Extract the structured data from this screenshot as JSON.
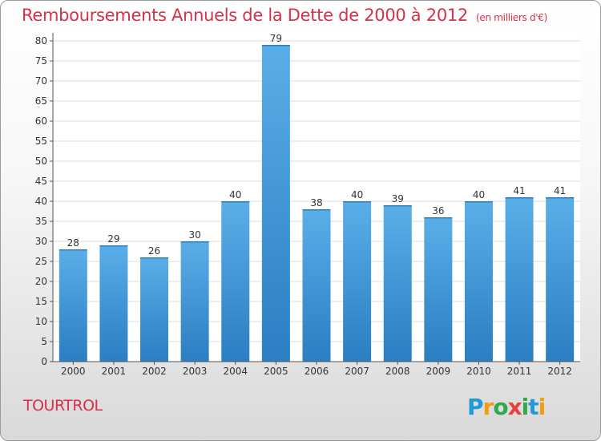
{
  "title": "Remboursements Annuels de la Dette de 2000 à 2012",
  "subtitle": "(en milliers d'€)",
  "location_label": "TOURTROL",
  "logo_text": "Proxiti",
  "colors": {
    "accent": "#d3324a",
    "bar_top": "#5aaee8",
    "bar_bottom": "#2a7ec2"
  },
  "chart_data": {
    "type": "bar",
    "categories": [
      "2000",
      "2001",
      "2002",
      "2003",
      "2004",
      "2005",
      "2006",
      "2007",
      "2008",
      "2009",
      "2010",
      "2011",
      "2012"
    ],
    "values": [
      28,
      29,
      26,
      30,
      40,
      79,
      38,
      40,
      39,
      36,
      40,
      41,
      41
    ],
    "title": "Remboursements Annuels de la Dette de 2000 à 2012",
    "ylim": [
      0,
      80
    ],
    "yticks": [
      0,
      5,
      10,
      15,
      20,
      25,
      30,
      35,
      40,
      45,
      50,
      55,
      60,
      65,
      70,
      75,
      80
    ],
    "grid": true
  }
}
